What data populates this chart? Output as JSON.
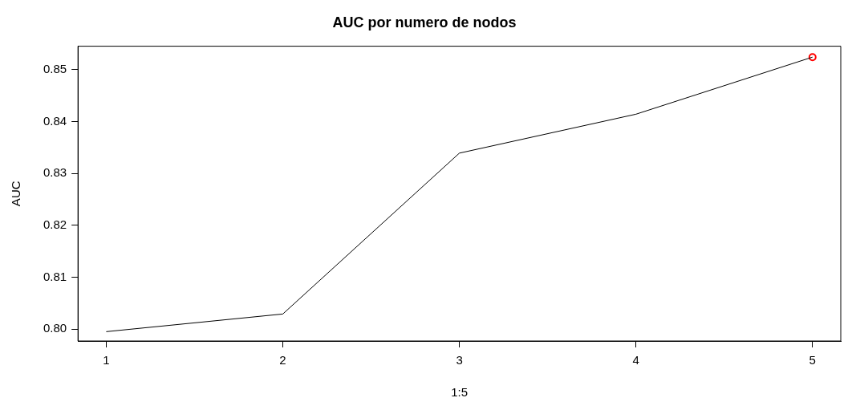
{
  "chart_data": {
    "type": "line",
    "title": "AUC por numero de nodos",
    "xlabel": "1:5",
    "ylabel": "AUC",
    "x": [
      1,
      2,
      3,
      4,
      5
    ],
    "series": [
      {
        "color": "#000000",
        "marker": "none",
        "values": [
          0.7995,
          0.8029,
          0.8339,
          0.8414,
          0.8524
        ]
      },
      {
        "type": "scatter",
        "x": [
          5
        ],
        "color": "#ff0000",
        "marker": "circle",
        "values": [
          0.8524
        ]
      }
    ],
    "xlim": [
      0.84,
      5.16
    ],
    "xticks": [
      1,
      2,
      3,
      4,
      5
    ],
    "ylim": [
      0.7977,
      0.8545
    ],
    "yticks": [
      {
        "value": 0.8,
        "label": "0.80"
      },
      {
        "value": 0.81,
        "label": "0.81"
      },
      {
        "value": 0.82,
        "label": "0.82"
      },
      {
        "value": 0.83,
        "label": "0.83"
      },
      {
        "value": 0.84,
        "label": "0.84"
      },
      {
        "value": 0.85,
        "label": "0.85"
      }
    ],
    "grid": false,
    "legend": false
  }
}
